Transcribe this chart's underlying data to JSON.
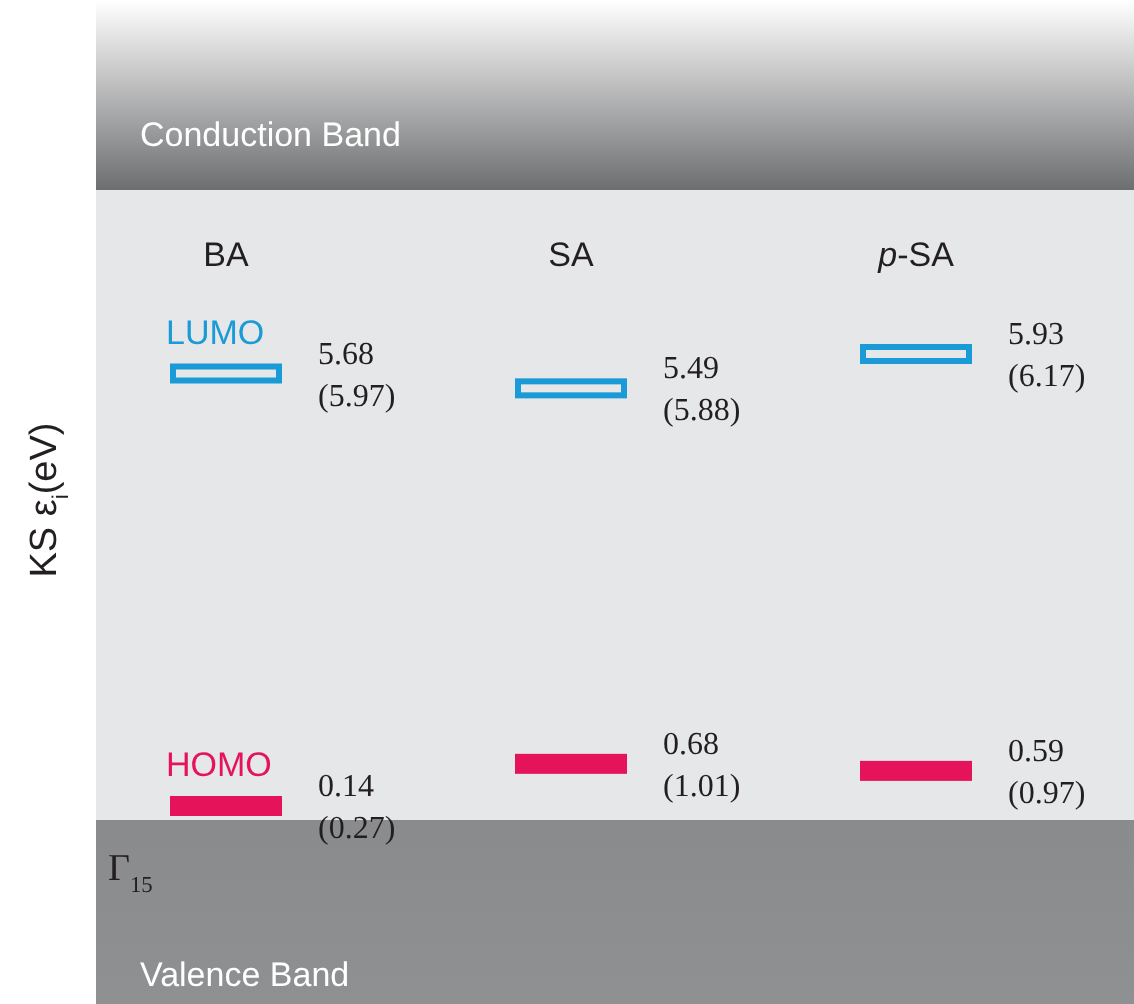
{
  "chart_data": {
    "type": "other",
    "ylabel": "KS ε$_{i}$(eV)",
    "categories": [
      "BA",
      "SA",
      "p-SA"
    ],
    "series": [
      {
        "name": "LUMO",
        "color": "#1a9ad6",
        "values": [
          5.68,
          5.49,
          5.93
        ],
        "value_labels": [
          "5.68\n(5.97)",
          "5.49\n(5.88)",
          "5.93\n(6.17)"
        ]
      },
      {
        "name": "HOMO",
        "color": "#e5135a",
        "values": [
          0.14,
          0.68,
          0.59
        ],
        "value_labels": [
          "0.14\n(0.27)",
          "0.68\n(1.01)",
          "0.59\n(0.97)"
        ]
      }
    ],
    "annotations": [
      "Conduction Band",
      "Valence Band",
      "Γ$_{15}$"
    ]
  }
}
